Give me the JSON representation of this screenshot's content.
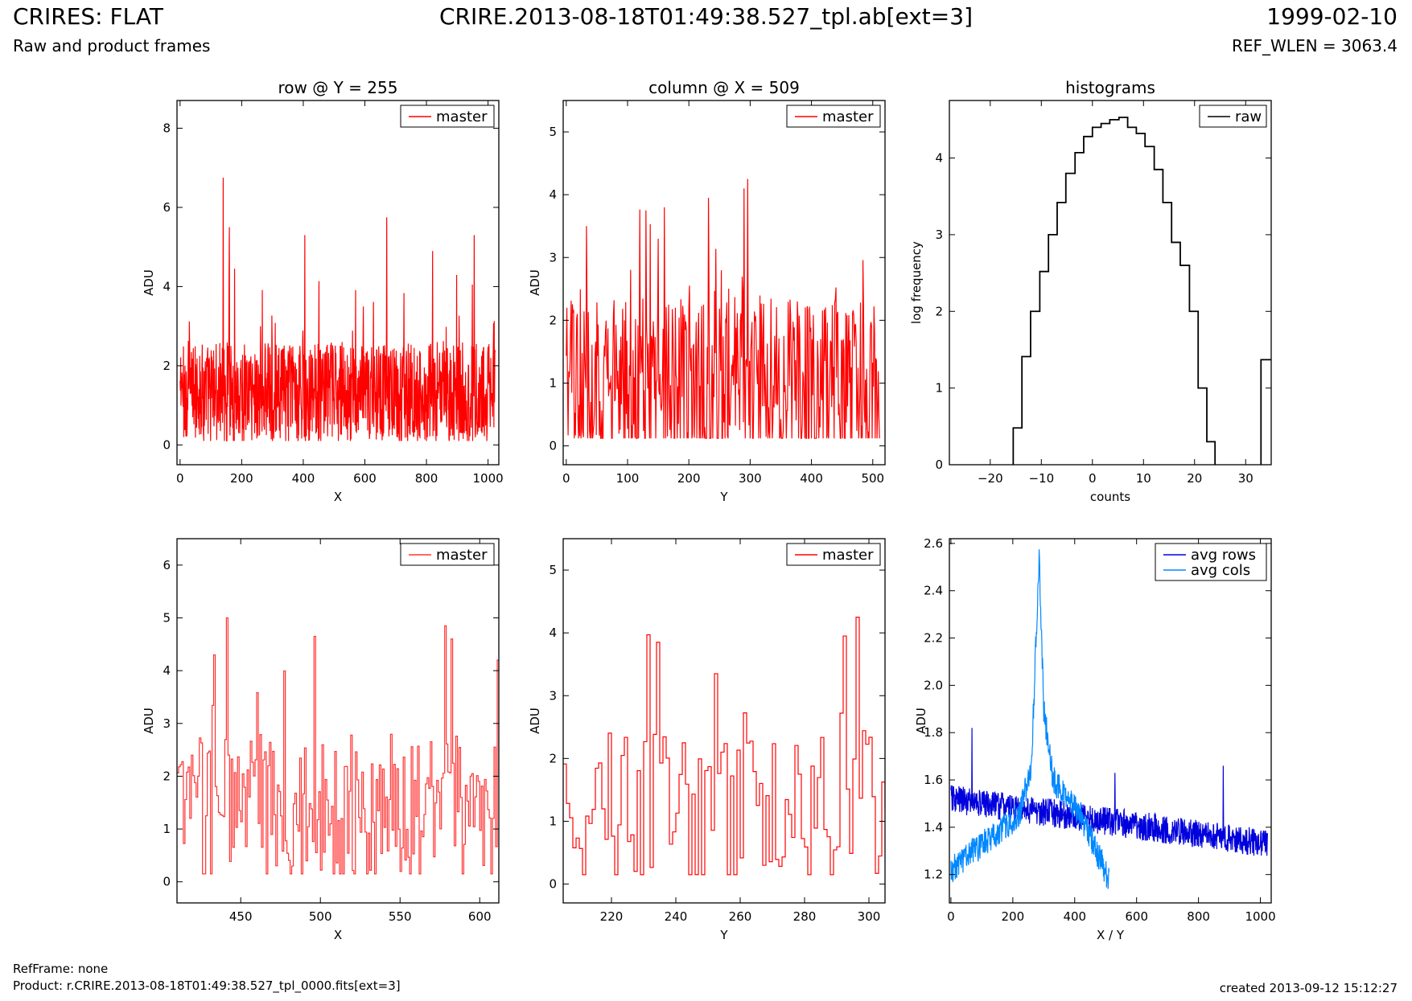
{
  "header": {
    "title": "CRIRES: FLAT",
    "subtitle": "Raw and product frames",
    "file": "CRIRE.2013-08-18T01:49:38.527_tpl.ab[ext=3]",
    "date": "1999-02-10",
    "ref_wlen": "REF_WLEN = 3063.4"
  },
  "footer": {
    "ref_frame": "RefFrame: none",
    "product": "Product: r.CRIRE.2013-08-18T01:49:38.527_tpl_0000.fits[ext=3]",
    "created": "created 2013-09-12 15:12:27"
  },
  "colors": {
    "master": "#ff0000",
    "master_zoom": "#ff3333",
    "raw": "#000000",
    "avg_rows": "#0000dd",
    "avg_cols": "#0088ff"
  },
  "chart_data": [
    {
      "id": "row",
      "type": "line",
      "title": "row @ Y = 255",
      "xlabel": "X",
      "ylabel": "ADU",
      "xlim": [
        -10,
        1035
      ],
      "ylim": [
        -0.5,
        8.7
      ],
      "xticks": [
        0,
        200,
        400,
        600,
        800,
        1000
      ],
      "yticks": [
        0,
        2,
        4,
        6,
        8
      ],
      "legend": "top-right",
      "series": [
        {
          "name": "master",
          "color": "#ff0000",
          "style": "noise",
          "x_range": [
            0,
            1023
          ],
          "n": 1024,
          "base": 1.3,
          "spread": 1.3,
          "min": 0.1,
          "peaks": [
            [
              140,
              6.75
            ],
            [
              671,
              5.75
            ],
            [
              955,
              5.3
            ],
            [
              160,
              5.5
            ],
            [
              405,
              5.3
            ],
            [
              820,
              4.9
            ]
          ]
        }
      ]
    },
    {
      "id": "col",
      "type": "line",
      "title": "column @ X = 509",
      "xlabel": "Y",
      "ylabel": "ADU",
      "xlim": [
        -5,
        520
      ],
      "ylim": [
        -0.3,
        5.5
      ],
      "xticks": [
        0,
        100,
        200,
        300,
        400,
        500
      ],
      "yticks": [
        0,
        1,
        2,
        3,
        4,
        5
      ],
      "legend": "top-right",
      "series": [
        {
          "name": "master",
          "color": "#ff0000",
          "style": "noise",
          "x_range": [
            0,
            511
          ],
          "n": 512,
          "base": 1.0,
          "spread": 1.35,
          "min": 0.12,
          "peaks": [
            [
              296,
              4.25
            ],
            [
              290,
              4.1
            ],
            [
              232,
              3.95
            ],
            [
              160,
              3.8
            ],
            [
              130,
              3.75
            ]
          ]
        }
      ]
    },
    {
      "id": "hist",
      "type": "line",
      "title": "histograms",
      "xlabel": "counts",
      "ylabel": "log frequency",
      "xlim": [
        -28,
        35
      ],
      "ylim": [
        0,
        4.75
      ],
      "xticks": [
        -20,
        -10,
        0,
        10,
        20,
        30
      ],
      "yticks": [
        0,
        1,
        2,
        3,
        4
      ],
      "legend": "top-right",
      "series": [
        {
          "name": "raw",
          "color": "#000000",
          "style": "steps",
          "edges": [
            -15.5,
            -13.8,
            -12.1,
            -10.3,
            -8.6,
            -6.9,
            -5.2,
            -3.4,
            -1.7,
            0,
            1.7,
            3.4,
            5.2,
            6.9,
            8.6,
            10.3,
            12.1,
            13.8,
            15.5,
            17.2,
            19.0,
            20.7,
            22.4,
            24.0
          ],
          "values": [
            0.48,
            1.41,
            2.0,
            2.52,
            3.0,
            3.42,
            3.8,
            4.07,
            4.28,
            4.4,
            4.45,
            4.5,
            4.53,
            4.4,
            4.32,
            4.15,
            3.85,
            3.42,
            2.9,
            2.6,
            2.0,
            1.0,
            0.3
          ],
          "extra_bar": {
            "from": 33.0,
            "to": 35,
            "value": 1.37
          }
        }
      ]
    },
    {
      "id": "rowzoom",
      "type": "line",
      "title": "",
      "xlabel": "X",
      "ylabel": "ADU",
      "xlim": [
        410,
        612
      ],
      "ylim": [
        -0.4,
        6.5
      ],
      "xticks": [
        450,
        500,
        550,
        600
      ],
      "yticks": [
        0,
        1,
        2,
        3,
        4,
        5,
        6
      ],
      "legend": "top-right",
      "series": [
        {
          "name": "master",
          "color": "#ff3333",
          "style": "stepnoise",
          "x_range": [
            410,
            612
          ],
          "n": 203,
          "base": 1.4,
          "spread": 1.4,
          "min": 0.15,
          "peaks": [
            [
              441,
              5.0
            ],
            [
              496,
              4.65
            ],
            [
              578,
              4.85
            ],
            [
              433,
              4.3
            ],
            [
              582,
              4.6
            ],
            [
              611,
              4.2
            ]
          ]
        }
      ]
    },
    {
      "id": "colzoom",
      "type": "line",
      "title": "",
      "xlabel": "Y",
      "ylabel": "ADU",
      "xlim": [
        205,
        305
      ],
      "ylim": [
        -0.3,
        5.5
      ],
      "xticks": [
        220,
        240,
        260,
        280,
        300
      ],
      "yticks": [
        0,
        1,
        2,
        3,
        4,
        5
      ],
      "legend": "top-right",
      "series": [
        {
          "name": "master",
          "color": "#ff0000",
          "style": "stepnoise",
          "x_range": [
            205,
            305
          ],
          "n": 101,
          "base": 1.2,
          "spread": 1.3,
          "min": 0.15,
          "peaks": [
            [
              231,
              3.97
            ],
            [
              296,
              4.25
            ],
            [
              292,
              3.95
            ],
            [
              252,
              3.35
            ],
            [
              234,
              3.85
            ]
          ]
        }
      ]
    },
    {
      "id": "avg",
      "type": "line",
      "title": "",
      "xlabel": "X / Y",
      "ylabel": "ADU",
      "xlim": [
        -5,
        1035
      ],
      "ylim": [
        1.08,
        2.62
      ],
      "xticks": [
        0,
        200,
        400,
        600,
        800,
        1000
      ],
      "yticks": [
        1.2,
        1.4,
        1.6,
        1.8,
        2.0,
        2.2,
        2.4,
        2.6
      ],
      "legend": "top-right",
      "series": [
        {
          "name": "avg rows",
          "color": "#0000dd",
          "style": "trend",
          "x_range": [
            0,
            1023
          ],
          "n": 1024,
          "start": 1.52,
          "end": 1.33,
          "noise": 0.06,
          "peaks": [
            [
              68,
              1.82
            ],
            [
              530,
              1.63
            ],
            [
              880,
              1.66
            ]
          ]
        },
        {
          "name": "avg cols",
          "color": "#0088ff",
          "style": "peak",
          "x_range": [
            0,
            511
          ],
          "n": 512,
          "noise": 0.06,
          "profile": [
            [
              0,
              1.22
            ],
            [
              120,
              1.35
            ],
            [
              220,
              1.45
            ],
            [
              260,
              1.65
            ],
            [
              285,
              2.55
            ],
            [
              300,
              1.9
            ],
            [
              330,
              1.6
            ],
            [
              420,
              1.45
            ],
            [
              511,
              1.18
            ]
          ]
        }
      ]
    }
  ]
}
